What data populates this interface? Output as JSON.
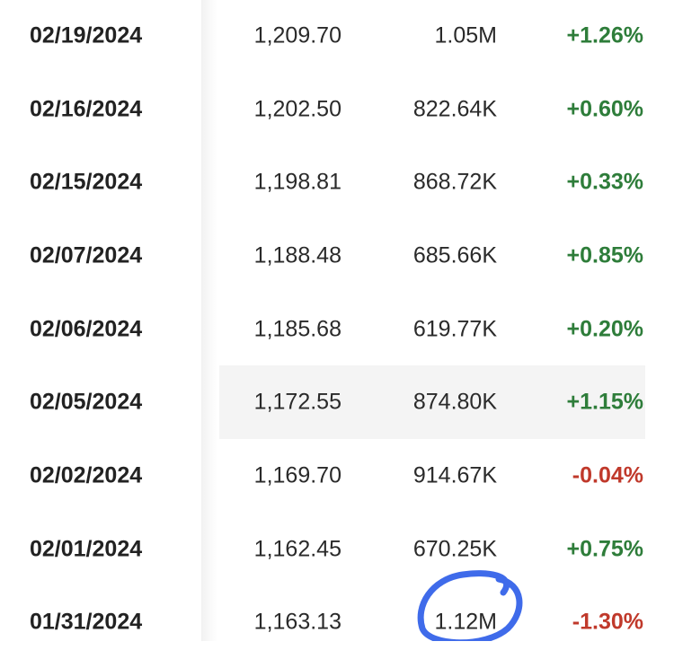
{
  "colors": {
    "up": "#2e7d3a",
    "down": "#c0392b",
    "annotation": "#2a5be8",
    "highlight": "#f4f4f4"
  },
  "rows": [
    {
      "date": "02/19/2024",
      "price": "1,209.70",
      "volume": "1.05M",
      "change": "+1.26%",
      "dir": "up"
    },
    {
      "date": "02/16/2024",
      "price": "1,202.50",
      "volume": "822.64K",
      "change": "+0.60%",
      "dir": "up"
    },
    {
      "date": "02/15/2024",
      "price": "1,198.81",
      "volume": "868.72K",
      "change": "+0.33%",
      "dir": "up"
    },
    {
      "date": "02/07/2024",
      "price": "1,188.48",
      "volume": "685.66K",
      "change": "+0.85%",
      "dir": "up"
    },
    {
      "date": "02/06/2024",
      "price": "1,185.68",
      "volume": "619.77K",
      "change": "+0.20%",
      "dir": "up"
    },
    {
      "date": "02/05/2024",
      "price": "1,172.55",
      "volume": "874.80K",
      "change": "+1.15%",
      "dir": "up",
      "highlighted": true
    },
    {
      "date": "02/02/2024",
      "price": "1,169.70",
      "volume": "914.67K",
      "change": "-0.04%",
      "dir": "down"
    },
    {
      "date": "02/01/2024",
      "price": "1,162.45",
      "volume": "670.25K",
      "change": "+0.75%",
      "dir": "up"
    },
    {
      "date": "01/31/2024",
      "price": "1,163.13",
      "volume": "1.12M",
      "change": "-1.30%",
      "dir": "down",
      "annotated": true
    }
  ]
}
